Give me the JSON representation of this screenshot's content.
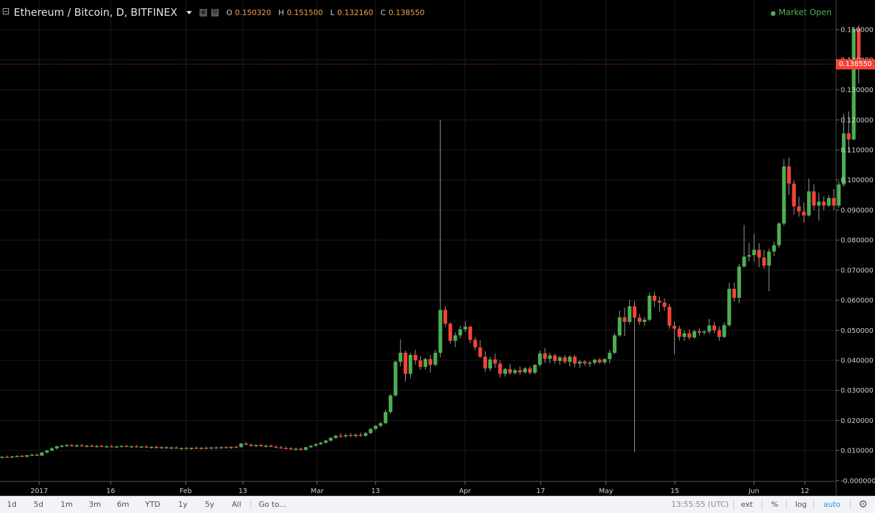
{
  "header": {
    "symbol": "Ethereum / Bitcoin, D, BITFINEX",
    "ohlc": [
      {
        "key": "O",
        "value": "0.150320"
      },
      {
        "key": "H",
        "value": "0.151500"
      },
      {
        "key": "L",
        "value": "0.132160"
      },
      {
        "key": "C",
        "value": "0.138550"
      }
    ],
    "market_status": "Market Open",
    "market_status_color": "#4caf50"
  },
  "chart_data": {
    "type": "candlestick",
    "ylim": [
      0,
      0.16
    ],
    "y_ticks": [
      "0.150000",
      "0.140000",
      "0.130000",
      "0.120000",
      "0.110000",
      "0.100000",
      "0.090000",
      "0.080000",
      "0.070000",
      "0.060000",
      "0.050000",
      "0.040000",
      "0.030000",
      "0.020000",
      "0.010000",
      "-0.000000"
    ],
    "x_tick_labels": [
      "2017",
      "16",
      "Feb",
      "13",
      "Mar",
      "13",
      "Apr",
      "17",
      "May",
      "15",
      "Jun",
      "12"
    ],
    "last_price": "0.138550",
    "up_color": "#4caf50",
    "down_color": "#f44336",
    "candles": [
      {
        "o": 0.0076,
        "h": 0.0081,
        "l": 0.0074,
        "c": 0.0079
      },
      {
        "o": 0.0079,
        "h": 0.0083,
        "l": 0.0076,
        "c": 0.0078
      },
      {
        "o": 0.0078,
        "h": 0.0082,
        "l": 0.0075,
        "c": 0.008
      },
      {
        "o": 0.008,
        "h": 0.0084,
        "l": 0.0078,
        "c": 0.0082
      },
      {
        "o": 0.0082,
        "h": 0.0086,
        "l": 0.0078,
        "c": 0.0079
      },
      {
        "o": 0.0079,
        "h": 0.0085,
        "l": 0.0078,
        "c": 0.0084
      },
      {
        "o": 0.0084,
        "h": 0.0088,
        "l": 0.0081,
        "c": 0.0086
      },
      {
        "o": 0.0086,
        "h": 0.009,
        "l": 0.0082,
        "c": 0.0083
      },
      {
        "o": 0.0083,
        "h": 0.0095,
        "l": 0.0082,
        "c": 0.0093
      },
      {
        "o": 0.0093,
        "h": 0.0102,
        "l": 0.009,
        "c": 0.01
      },
      {
        "o": 0.01,
        "h": 0.011,
        "l": 0.0097,
        "c": 0.0107
      },
      {
        "o": 0.0107,
        "h": 0.0116,
        "l": 0.0104,
        "c": 0.0114
      },
      {
        "o": 0.0114,
        "h": 0.0119,
        "l": 0.011,
        "c": 0.0116
      },
      {
        "o": 0.0116,
        "h": 0.0121,
        "l": 0.0112,
        "c": 0.0118
      },
      {
        "o": 0.0118,
        "h": 0.0122,
        "l": 0.0113,
        "c": 0.0115
      },
      {
        "o": 0.0115,
        "h": 0.012,
        "l": 0.0111,
        "c": 0.0117
      },
      {
        "o": 0.0117,
        "h": 0.0122,
        "l": 0.0113,
        "c": 0.0114
      },
      {
        "o": 0.0114,
        "h": 0.0119,
        "l": 0.011,
        "c": 0.0116
      },
      {
        "o": 0.0116,
        "h": 0.012,
        "l": 0.0112,
        "c": 0.0113
      },
      {
        "o": 0.0113,
        "h": 0.0118,
        "l": 0.011,
        "c": 0.0115
      },
      {
        "o": 0.0115,
        "h": 0.0119,
        "l": 0.0111,
        "c": 0.0112
      },
      {
        "o": 0.0112,
        "h": 0.0117,
        "l": 0.0109,
        "c": 0.0114
      },
      {
        "o": 0.0114,
        "h": 0.0118,
        "l": 0.011,
        "c": 0.0111
      },
      {
        "o": 0.0111,
        "h": 0.0116,
        "l": 0.0108,
        "c": 0.0113
      },
      {
        "o": 0.0113,
        "h": 0.0117,
        "l": 0.011,
        "c": 0.0115
      },
      {
        "o": 0.0115,
        "h": 0.0119,
        "l": 0.0111,
        "c": 0.0112
      },
      {
        "o": 0.0112,
        "h": 0.0116,
        "l": 0.0109,
        "c": 0.0114
      },
      {
        "o": 0.0114,
        "h": 0.0118,
        "l": 0.011,
        "c": 0.0111
      },
      {
        "o": 0.0111,
        "h": 0.0115,
        "l": 0.0108,
        "c": 0.0113
      },
      {
        "o": 0.0113,
        "h": 0.0117,
        "l": 0.0109,
        "c": 0.011
      },
      {
        "o": 0.011,
        "h": 0.0114,
        "l": 0.0106,
        "c": 0.0112
      },
      {
        "o": 0.0112,
        "h": 0.0116,
        "l": 0.0107,
        "c": 0.0108
      },
      {
        "o": 0.0108,
        "h": 0.0113,
        "l": 0.0105,
        "c": 0.0111
      },
      {
        "o": 0.0111,
        "h": 0.0115,
        "l": 0.0106,
        "c": 0.0107
      },
      {
        "o": 0.0107,
        "h": 0.0112,
        "l": 0.0104,
        "c": 0.011
      },
      {
        "o": 0.011,
        "h": 0.0114,
        "l": 0.0106,
        "c": 0.0106
      },
      {
        "o": 0.0106,
        "h": 0.011,
        "l": 0.0102,
        "c": 0.0108
      },
      {
        "o": 0.0108,
        "h": 0.0112,
        "l": 0.0104,
        "c": 0.0105
      },
      {
        "o": 0.0105,
        "h": 0.011,
        "l": 0.0102,
        "c": 0.0109
      },
      {
        "o": 0.0109,
        "h": 0.0113,
        "l": 0.0105,
        "c": 0.0106
      },
      {
        "o": 0.0106,
        "h": 0.0111,
        "l": 0.0103,
        "c": 0.0109
      },
      {
        "o": 0.0109,
        "h": 0.0113,
        "l": 0.0105,
        "c": 0.0107
      },
      {
        "o": 0.0107,
        "h": 0.0112,
        "l": 0.0103,
        "c": 0.011
      },
      {
        "o": 0.011,
        "h": 0.0114,
        "l": 0.0106,
        "c": 0.0108
      },
      {
        "o": 0.0108,
        "h": 0.0113,
        "l": 0.0105,
        "c": 0.0111
      },
      {
        "o": 0.0111,
        "h": 0.0115,
        "l": 0.0107,
        "c": 0.0109
      },
      {
        "o": 0.0109,
        "h": 0.0113,
        "l": 0.0105,
        "c": 0.0112
      },
      {
        "o": 0.0112,
        "h": 0.0116,
        "l": 0.0108,
        "c": 0.0111
      },
      {
        "o": 0.0111,
        "h": 0.0125,
        "l": 0.011,
        "c": 0.0123
      },
      {
        "o": 0.0123,
        "h": 0.0128,
        "l": 0.0117,
        "c": 0.0119
      },
      {
        "o": 0.0119,
        "h": 0.0123,
        "l": 0.0113,
        "c": 0.0115
      },
      {
        "o": 0.0115,
        "h": 0.012,
        "l": 0.0111,
        "c": 0.0118
      },
      {
        "o": 0.0118,
        "h": 0.0122,
        "l": 0.0113,
        "c": 0.0114
      },
      {
        "o": 0.0114,
        "h": 0.0119,
        "l": 0.011,
        "c": 0.0116
      },
      {
        "o": 0.0116,
        "h": 0.012,
        "l": 0.0111,
        "c": 0.0112
      },
      {
        "o": 0.0112,
        "h": 0.0117,
        "l": 0.0108,
        "c": 0.011
      },
      {
        "o": 0.011,
        "h": 0.0115,
        "l": 0.0106,
        "c": 0.0108
      },
      {
        "o": 0.0108,
        "h": 0.0113,
        "l": 0.0104,
        "c": 0.0107
      },
      {
        "o": 0.0107,
        "h": 0.0111,
        "l": 0.0102,
        "c": 0.0104
      },
      {
        "o": 0.0104,
        "h": 0.0109,
        "l": 0.01,
        "c": 0.0106
      },
      {
        "o": 0.0106,
        "h": 0.011,
        "l": 0.01,
        "c": 0.0102
      },
      {
        "o": 0.0102,
        "h": 0.0112,
        "l": 0.0101,
        "c": 0.0111
      },
      {
        "o": 0.0111,
        "h": 0.0118,
        "l": 0.0108,
        "c": 0.0116
      },
      {
        "o": 0.0116,
        "h": 0.0124,
        "l": 0.0113,
        "c": 0.0121
      },
      {
        "o": 0.0121,
        "h": 0.0129,
        "l": 0.0118,
        "c": 0.0126
      },
      {
        "o": 0.0126,
        "h": 0.0135,
        "l": 0.0123,
        "c": 0.0133
      },
      {
        "o": 0.0133,
        "h": 0.0145,
        "l": 0.013,
        "c": 0.0142
      },
      {
        "o": 0.0142,
        "h": 0.0152,
        "l": 0.0138,
        "c": 0.0149
      },
      {
        "o": 0.0149,
        "h": 0.0158,
        "l": 0.0143,
        "c": 0.0147
      },
      {
        "o": 0.0147,
        "h": 0.0156,
        "l": 0.0142,
        "c": 0.0151
      },
      {
        "o": 0.0151,
        "h": 0.0158,
        "l": 0.0145,
        "c": 0.0148
      },
      {
        "o": 0.0148,
        "h": 0.0156,
        "l": 0.0143,
        "c": 0.0152
      },
      {
        "o": 0.0152,
        "h": 0.016,
        "l": 0.0146,
        "c": 0.0149
      },
      {
        "o": 0.0149,
        "h": 0.0161,
        "l": 0.0146,
        "c": 0.0158
      },
      {
        "o": 0.0158,
        "h": 0.0175,
        "l": 0.0154,
        "c": 0.0172
      },
      {
        "o": 0.0172,
        "h": 0.0185,
        "l": 0.0167,
        "c": 0.0182
      },
      {
        "o": 0.0182,
        "h": 0.0195,
        "l": 0.0178,
        "c": 0.0191
      },
      {
        "o": 0.0191,
        "h": 0.0235,
        "l": 0.0187,
        "c": 0.0228
      },
      {
        "o": 0.0228,
        "h": 0.0288,
        "l": 0.0224,
        "c": 0.0283
      },
      {
        "o": 0.0283,
        "h": 0.04,
        "l": 0.0279,
        "c": 0.0395
      },
      {
        "o": 0.0395,
        "h": 0.047,
        "l": 0.038,
        "c": 0.0425
      },
      {
        "o": 0.0425,
        "h": 0.0432,
        "l": 0.033,
        "c": 0.0355
      },
      {
        "o": 0.0355,
        "h": 0.0425,
        "l": 0.034,
        "c": 0.0418
      },
      {
        "o": 0.0418,
        "h": 0.0435,
        "l": 0.0386,
        "c": 0.04
      },
      {
        "o": 0.04,
        "h": 0.0415,
        "l": 0.0368,
        "c": 0.0378
      },
      {
        "o": 0.0378,
        "h": 0.0409,
        "l": 0.0369,
        "c": 0.0404
      },
      {
        "o": 0.0404,
        "h": 0.0418,
        "l": 0.036,
        "c": 0.0385
      },
      {
        "o": 0.0385,
        "h": 0.0435,
        "l": 0.038,
        "c": 0.0425
      },
      {
        "o": 0.0425,
        "h": 0.12,
        "l": 0.041,
        "c": 0.0568
      },
      {
        "o": 0.0568,
        "h": 0.058,
        "l": 0.0512,
        "c": 0.0522
      },
      {
        "o": 0.0522,
        "h": 0.0526,
        "l": 0.0456,
        "c": 0.0465
      },
      {
        "o": 0.0465,
        "h": 0.0493,
        "l": 0.0444,
        "c": 0.0483
      },
      {
        "o": 0.0483,
        "h": 0.0515,
        "l": 0.0473,
        "c": 0.0503
      },
      {
        "o": 0.0503,
        "h": 0.0531,
        "l": 0.0494,
        "c": 0.0512
      },
      {
        "o": 0.0512,
        "h": 0.0514,
        "l": 0.0458,
        "c": 0.0468
      },
      {
        "o": 0.0468,
        "h": 0.0478,
        "l": 0.0434,
        "c": 0.0443
      },
      {
        "o": 0.0443,
        "h": 0.0467,
        "l": 0.0407,
        "c": 0.0412
      },
      {
        "o": 0.0412,
        "h": 0.043,
        "l": 0.0362,
        "c": 0.0373
      },
      {
        "o": 0.0373,
        "h": 0.0412,
        "l": 0.0364,
        "c": 0.0403
      },
      {
        "o": 0.0403,
        "h": 0.0422,
        "l": 0.0375,
        "c": 0.0389
      },
      {
        "o": 0.0389,
        "h": 0.04,
        "l": 0.0343,
        "c": 0.0355
      },
      {
        "o": 0.0355,
        "h": 0.0375,
        "l": 0.0346,
        "c": 0.0371
      },
      {
        "o": 0.0371,
        "h": 0.0388,
        "l": 0.0352,
        "c": 0.0358
      },
      {
        "o": 0.0358,
        "h": 0.0372,
        "l": 0.0352,
        "c": 0.0367
      },
      {
        "o": 0.0367,
        "h": 0.038,
        "l": 0.0352,
        "c": 0.036
      },
      {
        "o": 0.036,
        "h": 0.0378,
        "l": 0.0355,
        "c": 0.0373
      },
      {
        "o": 0.0373,
        "h": 0.038,
        "l": 0.0353,
        "c": 0.0359
      },
      {
        "o": 0.0359,
        "h": 0.0387,
        "l": 0.0354,
        "c": 0.0385
      },
      {
        "o": 0.0385,
        "h": 0.0432,
        "l": 0.0379,
        "c": 0.0423
      },
      {
        "o": 0.0423,
        "h": 0.0441,
        "l": 0.0391,
        "c": 0.0405
      },
      {
        "o": 0.0405,
        "h": 0.0425,
        "l": 0.039,
        "c": 0.0416
      },
      {
        "o": 0.0416,
        "h": 0.0422,
        "l": 0.039,
        "c": 0.0398
      },
      {
        "o": 0.0398,
        "h": 0.0415,
        "l": 0.0385,
        "c": 0.041
      },
      {
        "o": 0.041,
        "h": 0.0418,
        "l": 0.0388,
        "c": 0.0395
      },
      {
        "o": 0.0395,
        "h": 0.0417,
        "l": 0.038,
        "c": 0.0412
      },
      {
        "o": 0.0412,
        "h": 0.0418,
        "l": 0.0377,
        "c": 0.0389
      },
      {
        "o": 0.0389,
        "h": 0.0401,
        "l": 0.0375,
        "c": 0.0396
      },
      {
        "o": 0.0396,
        "h": 0.04,
        "l": 0.0382,
        "c": 0.039
      },
      {
        "o": 0.039,
        "h": 0.0398,
        "l": 0.0378,
        "c": 0.0392
      },
      {
        "o": 0.0392,
        "h": 0.0405,
        "l": 0.0385,
        "c": 0.0402
      },
      {
        "o": 0.0402,
        "h": 0.0408,
        "l": 0.0388,
        "c": 0.0393
      },
      {
        "o": 0.0393,
        "h": 0.0407,
        "l": 0.0387,
        "c": 0.0404
      },
      {
        "o": 0.0404,
        "h": 0.0435,
        "l": 0.039,
        "c": 0.0425
      },
      {
        "o": 0.0425,
        "h": 0.049,
        "l": 0.042,
        "c": 0.0483
      },
      {
        "o": 0.0483,
        "h": 0.0565,
        "l": 0.0478,
        "c": 0.0543
      },
      {
        "o": 0.0543,
        "h": 0.0575,
        "l": 0.048,
        "c": 0.0528
      },
      {
        "o": 0.0528,
        "h": 0.0602,
        "l": 0.052,
        "c": 0.058
      },
      {
        "o": 0.058,
        "h": 0.0598,
        "l": 0.0095,
        "c": 0.0542
      },
      {
        "o": 0.0542,
        "h": 0.0555,
        "l": 0.0518,
        "c": 0.0528
      },
      {
        "o": 0.0528,
        "h": 0.0545,
        "l": 0.0515,
        "c": 0.0535
      },
      {
        "o": 0.0535,
        "h": 0.0625,
        "l": 0.053,
        "c": 0.0615
      },
      {
        "o": 0.0615,
        "h": 0.0628,
        "l": 0.0578,
        "c": 0.0598
      },
      {
        "o": 0.0598,
        "h": 0.0612,
        "l": 0.0562,
        "c": 0.0592
      },
      {
        "o": 0.0592,
        "h": 0.0606,
        "l": 0.0565,
        "c": 0.0578
      },
      {
        "o": 0.0578,
        "h": 0.0588,
        "l": 0.0505,
        "c": 0.0515
      },
      {
        "o": 0.0515,
        "h": 0.053,
        "l": 0.042,
        "c": 0.0505
      },
      {
        "o": 0.0505,
        "h": 0.0515,
        "l": 0.0465,
        "c": 0.0478
      },
      {
        "o": 0.0478,
        "h": 0.05,
        "l": 0.0465,
        "c": 0.049
      },
      {
        "o": 0.049,
        "h": 0.0503,
        "l": 0.0468,
        "c": 0.0476
      },
      {
        "o": 0.0476,
        "h": 0.0502,
        "l": 0.0472,
        "c": 0.0497
      },
      {
        "o": 0.0497,
        "h": 0.0506,
        "l": 0.0482,
        "c": 0.0492
      },
      {
        "o": 0.0492,
        "h": 0.0501,
        "l": 0.0484,
        "c": 0.0496
      },
      {
        "o": 0.0496,
        "h": 0.0538,
        "l": 0.0488,
        "c": 0.0516
      },
      {
        "o": 0.0516,
        "h": 0.0528,
        "l": 0.049,
        "c": 0.05
      },
      {
        "o": 0.05,
        "h": 0.0513,
        "l": 0.0465,
        "c": 0.0478
      },
      {
        "o": 0.0478,
        "h": 0.0527,
        "l": 0.0474,
        "c": 0.0517
      },
      {
        "o": 0.0517,
        "h": 0.0658,
        "l": 0.0512,
        "c": 0.0638
      },
      {
        "o": 0.0638,
        "h": 0.0658,
        "l": 0.0596,
        "c": 0.0608
      },
      {
        "o": 0.0608,
        "h": 0.072,
        "l": 0.059,
        "c": 0.0712
      },
      {
        "o": 0.0712,
        "h": 0.085,
        "l": 0.0708,
        "c": 0.0745
      },
      {
        "o": 0.0745,
        "h": 0.079,
        "l": 0.073,
        "c": 0.075
      },
      {
        "o": 0.075,
        "h": 0.082,
        "l": 0.0728,
        "c": 0.0768
      },
      {
        "o": 0.0768,
        "h": 0.079,
        "l": 0.071,
        "c": 0.0742
      },
      {
        "o": 0.0742,
        "h": 0.0768,
        "l": 0.0705,
        "c": 0.0715
      },
      {
        "o": 0.0715,
        "h": 0.0772,
        "l": 0.063,
        "c": 0.0762
      },
      {
        "o": 0.0762,
        "h": 0.0795,
        "l": 0.0748,
        "c": 0.0783
      },
      {
        "o": 0.0783,
        "h": 0.086,
        "l": 0.0775,
        "c": 0.0855
      },
      {
        "o": 0.0855,
        "h": 0.107,
        "l": 0.0848,
        "c": 0.1045
      },
      {
        "o": 0.1045,
        "h": 0.1075,
        "l": 0.095,
        "c": 0.0988
      },
      {
        "o": 0.0988,
        "h": 0.0998,
        "l": 0.0885,
        "c": 0.0912
      },
      {
        "o": 0.0912,
        "h": 0.0945,
        "l": 0.0878,
        "c": 0.0895
      },
      {
        "o": 0.0895,
        "h": 0.0925,
        "l": 0.0858,
        "c": 0.0882
      },
      {
        "o": 0.0882,
        "h": 0.1005,
        "l": 0.0878,
        "c": 0.0962
      },
      {
        "o": 0.0962,
        "h": 0.0985,
        "l": 0.09,
        "c": 0.0915
      },
      {
        "o": 0.0915,
        "h": 0.0958,
        "l": 0.0865,
        "c": 0.0928
      },
      {
        "o": 0.0928,
        "h": 0.0945,
        "l": 0.09,
        "c": 0.0915
      },
      {
        "o": 0.0915,
        "h": 0.095,
        "l": 0.091,
        "c": 0.094
      },
      {
        "o": 0.094,
        "h": 0.097,
        "l": 0.09,
        "c": 0.0915
      },
      {
        "o": 0.0915,
        "h": 0.0995,
        "l": 0.0908,
        "c": 0.0985
      },
      {
        "o": 0.0985,
        "h": 0.122,
        "l": 0.0978,
        "c": 0.1155
      },
      {
        "o": 0.1155,
        "h": 0.1228,
        "l": 0.109,
        "c": 0.1135
      },
      {
        "o": 0.1135,
        "h": 0.1502,
        "l": 0.1132,
        "c": 0.1503
      },
      {
        "o": 0.1503,
        "h": 0.1515,
        "l": 0.1321,
        "c": 0.13855
      }
    ]
  },
  "toolbar": {
    "ranges": [
      "1d",
      "5d",
      "1m",
      "3m",
      "6m",
      "YTD",
      "1y",
      "5y",
      "All"
    ],
    "goto": "Go to...",
    "time": "13:55:55 (UTC)",
    "ext": "ext",
    "percent": "%",
    "log": "log",
    "auto": "auto",
    "gear_icon": "gear-icon"
  }
}
